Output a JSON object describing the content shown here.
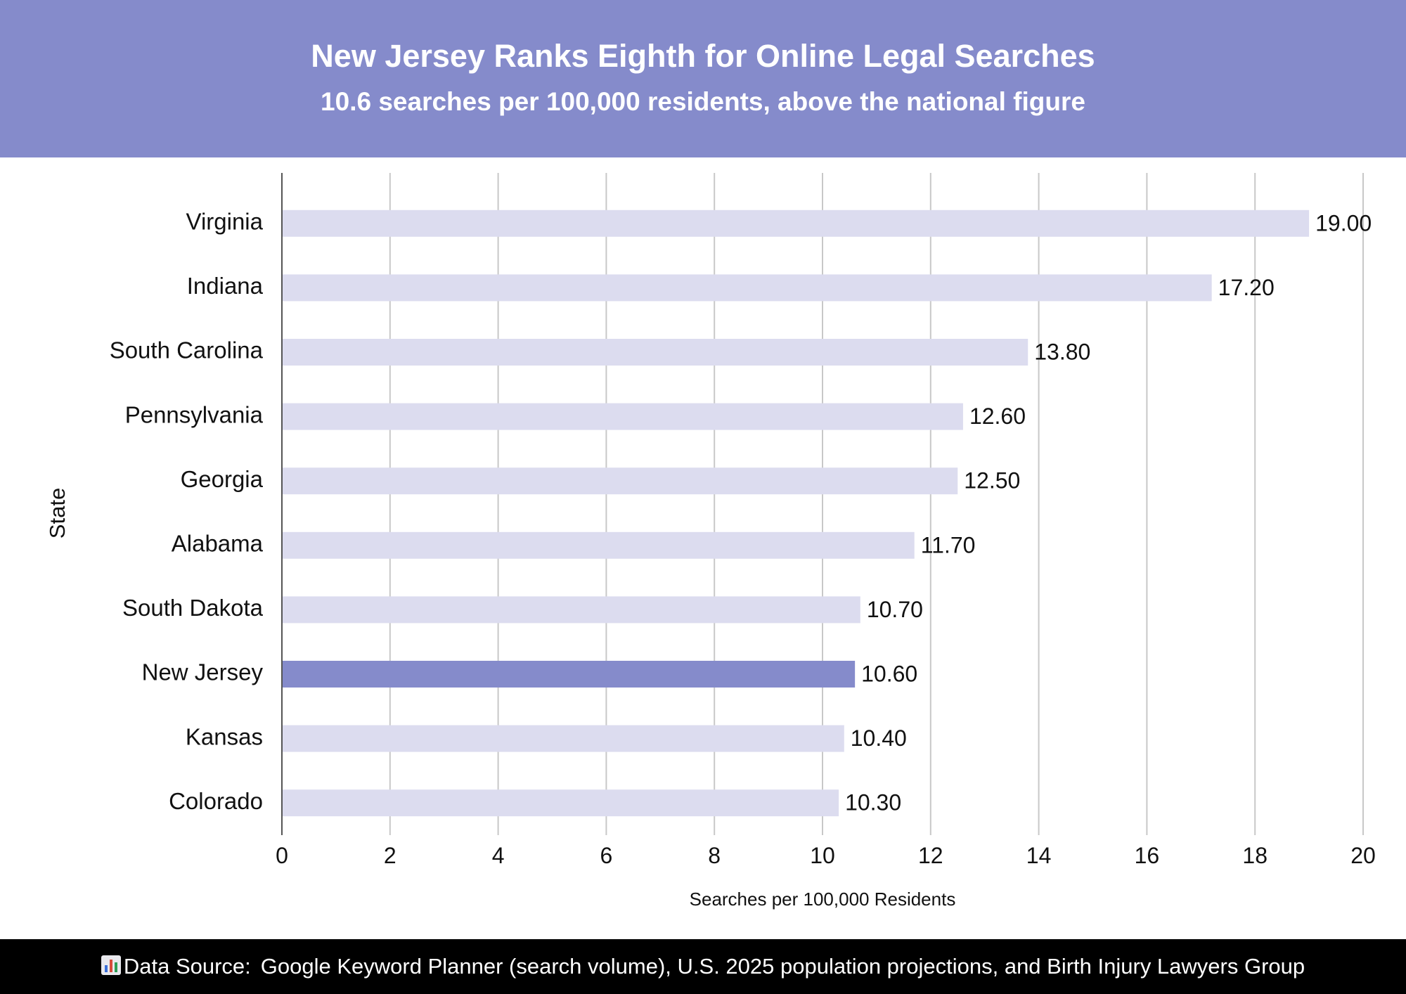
{
  "colors": {
    "header_bg": "#858bcb",
    "bar_default": "#dcdcef",
    "bar_highlight": "#858bcb",
    "grid": "#c8c8c8",
    "text": "#111111"
  },
  "header": {
    "title": "New Jersey Ranks Eighth for Online Legal Searches",
    "subtitle": "10.6 searches per 100,000 residents, above the national figure"
  },
  "footer": {
    "icon": "bar-chart-icon",
    "label": "Data Source:",
    "text": "Google Keyword Planner (search volume), U.S. 2025 population projections, and Birth Injury Lawyers Group"
  },
  "chart_data": {
    "type": "bar",
    "orientation": "horizontal",
    "categories": [
      "Virginia",
      "Indiana",
      "South Carolina",
      "Pennsylvania",
      "Georgia",
      "Alabama",
      "South Dakota",
      "New Jersey",
      "Kansas",
      "Colorado"
    ],
    "values": [
      19.0,
      17.2,
      13.8,
      12.6,
      12.5,
      11.7,
      10.7,
      10.6,
      10.4,
      10.3
    ],
    "value_labels": [
      "19.00",
      "17.20",
      "13.80",
      "12.60",
      "12.50",
      "11.70",
      "10.70",
      "10.60",
      "10.40",
      "10.30"
    ],
    "highlight": "New Jersey",
    "xlabel": "Searches per 100,000 Residents",
    "ylabel": "State",
    "xlim": [
      0,
      20
    ],
    "xticks": [
      0,
      2,
      4,
      6,
      8,
      10,
      12,
      14,
      16,
      18,
      20
    ],
    "grid": "vertical"
  }
}
